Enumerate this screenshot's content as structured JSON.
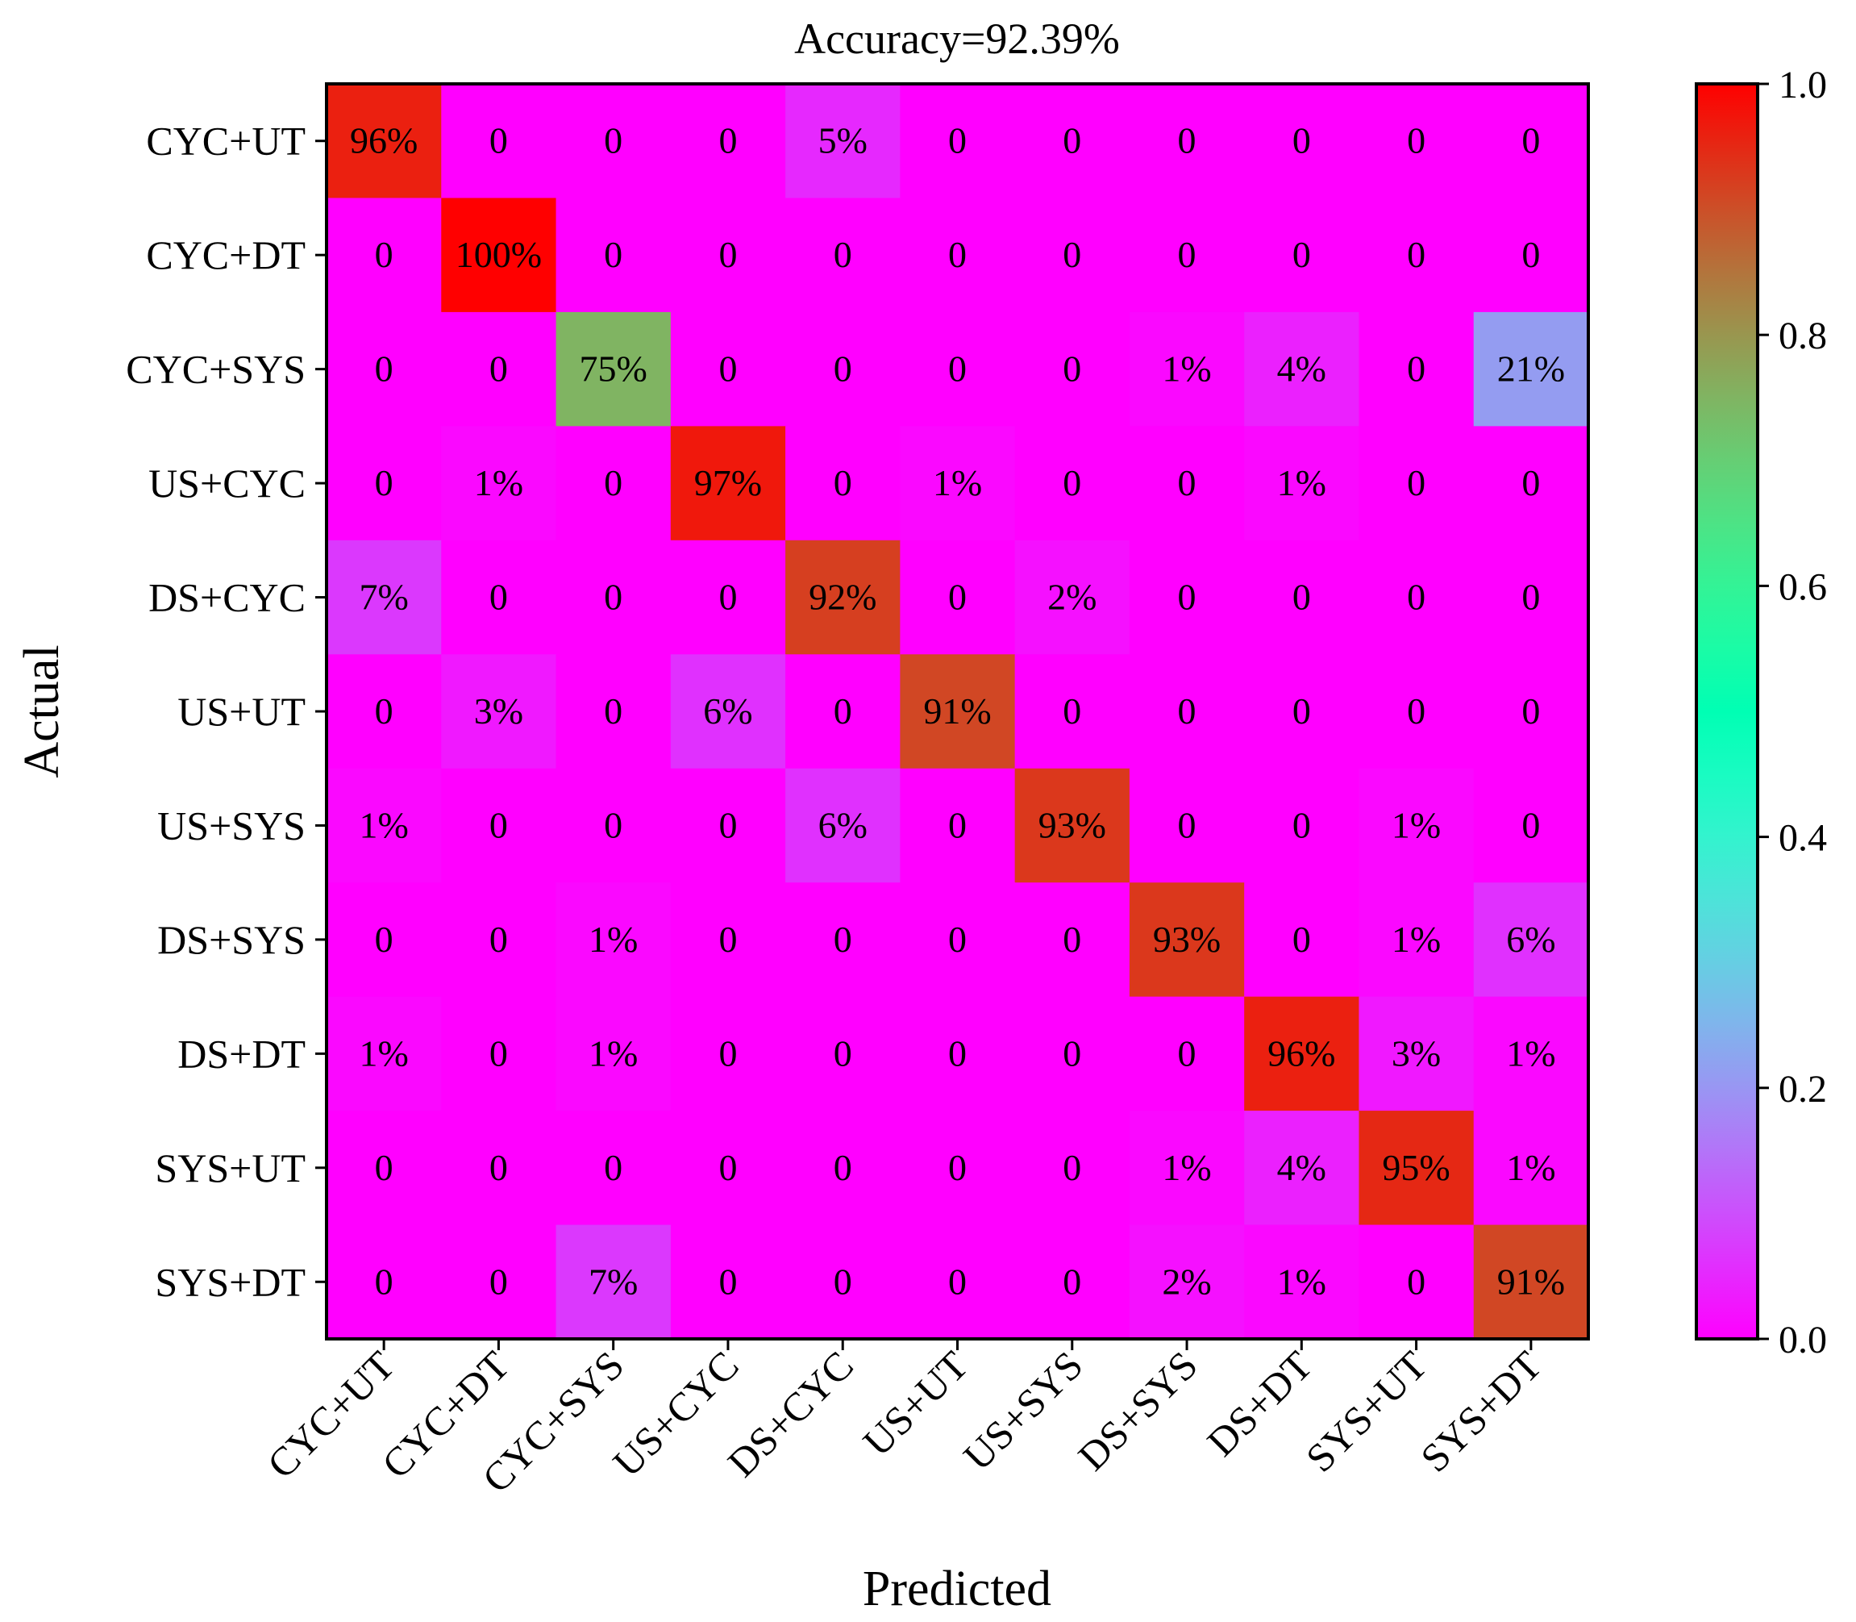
{
  "chart_data": {
    "type": "heatmap",
    "title": "Accuracy=92.39%",
    "xlabel": "Predicted",
    "ylabel": "Actual",
    "x_categories": [
      "CYC+UT",
      "CYC+DT",
      "CYC+SYS",
      "US+CYC",
      "DS+CYC",
      "US+UT",
      "US+SYS",
      "DS+SYS",
      "DS+DT",
      "SYS+UT",
      "SYS+DT"
    ],
    "y_categories": [
      "CYC+UT",
      "CYC+DT",
      "CYC+SYS",
      "US+CYC",
      "DS+CYC",
      "US+UT",
      "US+SYS",
      "DS+SYS",
      "DS+DT",
      "SYS+UT",
      "SYS+DT"
    ],
    "values": [
      [
        0.96,
        0,
        0,
        0,
        0.05,
        0,
        0,
        0,
        0,
        0,
        0
      ],
      [
        0,
        1.0,
        0,
        0,
        0,
        0,
        0,
        0,
        0,
        0,
        0
      ],
      [
        0,
        0,
        0.75,
        0,
        0,
        0,
        0,
        0.01,
        0.04,
        0,
        0.21
      ],
      [
        0,
        0.01,
        0,
        0.97,
        0,
        0.01,
        0,
        0,
        0.01,
        0,
        0
      ],
      [
        0.07,
        0,
        0,
        0,
        0.92,
        0,
        0.02,
        0,
        0,
        0,
        0
      ],
      [
        0,
        0.03,
        0,
        0.06,
        0,
        0.91,
        0,
        0,
        0,
        0,
        0
      ],
      [
        0.01,
        0,
        0,
        0,
        0.06,
        0,
        0.93,
        0,
        0,
        0.01,
        0
      ],
      [
        0,
        0,
        0.01,
        0,
        0,
        0,
        0,
        0.93,
        0,
        0.01,
        0.06
      ],
      [
        0.01,
        0,
        0.01,
        0,
        0,
        0,
        0,
        0,
        0.96,
        0.03,
        0.01
      ],
      [
        0,
        0,
        0,
        0,
        0,
        0,
        0,
        0.01,
        0.04,
        0.95,
        0.01
      ],
      [
        0,
        0,
        0.07,
        0,
        0,
        0,
        0,
        0.02,
        0.01,
        0,
        0.91
      ]
    ],
    "cell_labels": [
      [
        "96%",
        "0",
        "0",
        "0",
        "5%",
        "0",
        "0",
        "0",
        "0",
        "0",
        "0"
      ],
      [
        "0",
        "100%",
        "0",
        "0",
        "0",
        "0",
        "0",
        "0",
        "0",
        "0",
        "0"
      ],
      [
        "0",
        "0",
        "75%",
        "0",
        "0",
        "0",
        "0",
        "1%",
        "4%",
        "0",
        "21%"
      ],
      [
        "0",
        "1%",
        "0",
        "97%",
        "0",
        "1%",
        "0",
        "0",
        "1%",
        "0",
        "0"
      ],
      [
        "7%",
        "0",
        "0",
        "0",
        "92%",
        "0",
        "2%",
        "0",
        "0",
        "0",
        "0"
      ],
      [
        "0",
        "3%",
        "0",
        "6%",
        "0",
        "91%",
        "0",
        "0",
        "0",
        "0",
        "0"
      ],
      [
        "1%",
        "0",
        "0",
        "0",
        "6%",
        "0",
        "93%",
        "0",
        "0",
        "1%",
        "0"
      ],
      [
        "0",
        "0",
        "1%",
        "0",
        "0",
        "0",
        "0",
        "93%",
        "0",
        "1%",
        "6%"
      ],
      [
        "1%",
        "0",
        "1%",
        "0",
        "0",
        "0",
        "0",
        "0",
        "96%",
        "3%",
        "1%"
      ],
      [
        "0",
        "0",
        "0",
        "0",
        "0",
        "0",
        "0",
        "1%",
        "4%",
        "95%",
        "1%"
      ],
      [
        "0",
        "0",
        "7%",
        "0",
        "0",
        "0",
        "0",
        "2%",
        "1%",
        "0",
        "91%"
      ]
    ],
    "colorbar": {
      "colormap": "rainbow",
      "range": [
        0.0,
        1.0
      ],
      "ticks": [
        0.0,
        0.2,
        0.4,
        0.6,
        0.8,
        1.0
      ],
      "tick_labels": [
        "0.0",
        "0.2",
        "0.4",
        "0.6",
        "0.8",
        "1.0"
      ]
    }
  }
}
